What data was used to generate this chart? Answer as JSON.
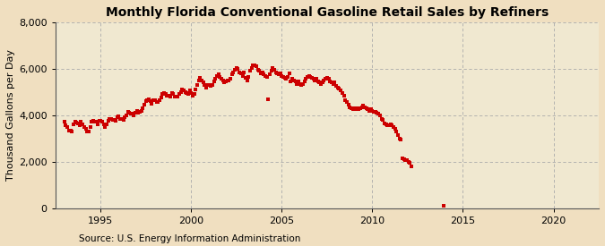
{
  "title": "Monthly Florida Conventional Gasoline Retail Sales by Refiners",
  "ylabel": "Thousand Gallons per Day",
  "source": "Source: U.S. Energy Information Administration",
  "background_color": "#f0dfc0",
  "plot_bg_color": "#f0e8d0",
  "marker_color": "#cc0000",
  "marker": "s",
  "marker_size": 2.5,
  "xlim": [
    1992.5,
    2022.5
  ],
  "ylim": [
    0,
    8000
  ],
  "yticks": [
    0,
    2000,
    4000,
    6000,
    8000
  ],
  "xticks": [
    1995,
    2000,
    2005,
    2010,
    2015,
    2020
  ],
  "grid_color": "#aaaaaa",
  "title_fontsize": 10,
  "ylabel_fontsize": 8,
  "source_fontsize": 7.5,
  "data": [
    [
      1993.0,
      3700
    ],
    [
      1993.08,
      3580
    ],
    [
      1993.17,
      3480
    ],
    [
      1993.25,
      3350
    ],
    [
      1993.33,
      3320
    ],
    [
      1993.42,
      3300
    ],
    [
      1993.5,
      3600
    ],
    [
      1993.58,
      3700
    ],
    [
      1993.67,
      3680
    ],
    [
      1993.75,
      3650
    ],
    [
      1993.83,
      3550
    ],
    [
      1993.92,
      3700
    ],
    [
      1994.0,
      3600
    ],
    [
      1994.08,
      3500
    ],
    [
      1994.17,
      3400
    ],
    [
      1994.25,
      3300
    ],
    [
      1994.33,
      3300
    ],
    [
      1994.42,
      3500
    ],
    [
      1994.5,
      3700
    ],
    [
      1994.58,
      3750
    ],
    [
      1994.67,
      3700
    ],
    [
      1994.75,
      3700
    ],
    [
      1994.83,
      3600
    ],
    [
      1994.92,
      3750
    ],
    [
      1995.0,
      3750
    ],
    [
      1995.08,
      3700
    ],
    [
      1995.17,
      3600
    ],
    [
      1995.25,
      3500
    ],
    [
      1995.33,
      3600
    ],
    [
      1995.42,
      3750
    ],
    [
      1995.5,
      3850
    ],
    [
      1995.58,
      3850
    ],
    [
      1995.67,
      3800
    ],
    [
      1995.75,
      3800
    ],
    [
      1995.83,
      3750
    ],
    [
      1995.92,
      3900
    ],
    [
      1996.0,
      3950
    ],
    [
      1996.08,
      3850
    ],
    [
      1996.17,
      3850
    ],
    [
      1996.25,
      3800
    ],
    [
      1996.33,
      3900
    ],
    [
      1996.42,
      4000
    ],
    [
      1996.5,
      4150
    ],
    [
      1996.58,
      4100
    ],
    [
      1996.67,
      4050
    ],
    [
      1996.75,
      4050
    ],
    [
      1996.83,
      4000
    ],
    [
      1996.92,
      4100
    ],
    [
      1997.0,
      4200
    ],
    [
      1997.08,
      4100
    ],
    [
      1997.17,
      4150
    ],
    [
      1997.25,
      4200
    ],
    [
      1997.33,
      4300
    ],
    [
      1997.42,
      4450
    ],
    [
      1997.5,
      4600
    ],
    [
      1997.58,
      4650
    ],
    [
      1997.67,
      4700
    ],
    [
      1997.75,
      4600
    ],
    [
      1997.83,
      4500
    ],
    [
      1997.92,
      4650
    ],
    [
      1998.0,
      4650
    ],
    [
      1998.08,
      4550
    ],
    [
      1998.17,
      4550
    ],
    [
      1998.25,
      4650
    ],
    [
      1998.33,
      4750
    ],
    [
      1998.42,
      4900
    ],
    [
      1998.5,
      4950
    ],
    [
      1998.58,
      4900
    ],
    [
      1998.67,
      4850
    ],
    [
      1998.75,
      4850
    ],
    [
      1998.83,
      4800
    ],
    [
      1998.92,
      4950
    ],
    [
      1999.0,
      4900
    ],
    [
      1999.08,
      4800
    ],
    [
      1999.17,
      4780
    ],
    [
      1999.25,
      4800
    ],
    [
      1999.33,
      4900
    ],
    [
      1999.42,
      5000
    ],
    [
      1999.5,
      5100
    ],
    [
      1999.58,
      5050
    ],
    [
      1999.67,
      5000
    ],
    [
      1999.75,
      4950
    ],
    [
      1999.83,
      4900
    ],
    [
      1999.92,
      5050
    ],
    [
      2000.0,
      4950
    ],
    [
      2000.08,
      4850
    ],
    [
      2000.17,
      4900
    ],
    [
      2000.25,
      5100
    ],
    [
      2000.33,
      5300
    ],
    [
      2000.42,
      5500
    ],
    [
      2000.5,
      5600
    ],
    [
      2000.58,
      5500
    ],
    [
      2000.67,
      5400
    ],
    [
      2000.75,
      5300
    ],
    [
      2000.83,
      5200
    ],
    [
      2000.92,
      5300
    ],
    [
      2001.0,
      5300
    ],
    [
      2001.08,
      5250
    ],
    [
      2001.17,
      5300
    ],
    [
      2001.25,
      5450
    ],
    [
      2001.33,
      5550
    ],
    [
      2001.42,
      5700
    ],
    [
      2001.5,
      5750
    ],
    [
      2001.58,
      5650
    ],
    [
      2001.67,
      5550
    ],
    [
      2001.75,
      5500
    ],
    [
      2001.83,
      5400
    ],
    [
      2001.92,
      5450
    ],
    [
      2002.0,
      5500
    ],
    [
      2002.08,
      5500
    ],
    [
      2002.17,
      5550
    ],
    [
      2002.25,
      5750
    ],
    [
      2002.33,
      5850
    ],
    [
      2002.42,
      5950
    ],
    [
      2002.5,
      6050
    ],
    [
      2002.58,
      6000
    ],
    [
      2002.67,
      5850
    ],
    [
      2002.75,
      5800
    ],
    [
      2002.83,
      5700
    ],
    [
      2002.92,
      5850
    ],
    [
      2003.0,
      5600
    ],
    [
      2003.08,
      5500
    ],
    [
      2003.17,
      5650
    ],
    [
      2003.25,
      5900
    ],
    [
      2003.33,
      6050
    ],
    [
      2003.42,
      6150
    ],
    [
      2003.5,
      6150
    ],
    [
      2003.58,
      6100
    ],
    [
      2003.67,
      5950
    ],
    [
      2003.75,
      5900
    ],
    [
      2003.83,
      5800
    ],
    [
      2003.92,
      5850
    ],
    [
      2004.0,
      5750
    ],
    [
      2004.08,
      5700
    ],
    [
      2004.17,
      5650
    ],
    [
      2004.25,
      4700
    ],
    [
      2004.33,
      5750
    ],
    [
      2004.42,
      5900
    ],
    [
      2004.5,
      6050
    ],
    [
      2004.58,
      5950
    ],
    [
      2004.67,
      5850
    ],
    [
      2004.75,
      5800
    ],
    [
      2004.83,
      5750
    ],
    [
      2004.92,
      5800
    ],
    [
      2005.0,
      5700
    ],
    [
      2005.08,
      5650
    ],
    [
      2005.17,
      5600
    ],
    [
      2005.25,
      5550
    ],
    [
      2005.33,
      5650
    ],
    [
      2005.42,
      5800
    ],
    [
      2005.5,
      5450
    ],
    [
      2005.58,
      5550
    ],
    [
      2005.67,
      5500
    ],
    [
      2005.75,
      5450
    ],
    [
      2005.83,
      5350
    ],
    [
      2005.92,
      5450
    ],
    [
      2006.0,
      5350
    ],
    [
      2006.08,
      5300
    ],
    [
      2006.17,
      5350
    ],
    [
      2006.25,
      5450
    ],
    [
      2006.33,
      5550
    ],
    [
      2006.42,
      5650
    ],
    [
      2006.5,
      5700
    ],
    [
      2006.58,
      5650
    ],
    [
      2006.67,
      5600
    ],
    [
      2006.75,
      5550
    ],
    [
      2006.83,
      5500
    ],
    [
      2006.92,
      5550
    ],
    [
      2007.0,
      5450
    ],
    [
      2007.08,
      5400
    ],
    [
      2007.17,
      5350
    ],
    [
      2007.25,
      5400
    ],
    [
      2007.33,
      5500
    ],
    [
      2007.42,
      5550
    ],
    [
      2007.5,
      5600
    ],
    [
      2007.58,
      5550
    ],
    [
      2007.67,
      5450
    ],
    [
      2007.75,
      5400
    ],
    [
      2007.83,
      5350
    ],
    [
      2007.92,
      5400
    ],
    [
      2008.0,
      5250
    ],
    [
      2008.08,
      5200
    ],
    [
      2008.17,
      5150
    ],
    [
      2008.25,
      5050
    ],
    [
      2008.33,
      4950
    ],
    [
      2008.42,
      4850
    ],
    [
      2008.5,
      4650
    ],
    [
      2008.58,
      4550
    ],
    [
      2008.67,
      4450
    ],
    [
      2008.75,
      4350
    ],
    [
      2008.83,
      4300
    ],
    [
      2008.92,
      4250
    ],
    [
      2009.0,
      4300
    ],
    [
      2009.08,
      4250
    ],
    [
      2009.17,
      4300
    ],
    [
      2009.25,
      4250
    ],
    [
      2009.33,
      4300
    ],
    [
      2009.42,
      4350
    ],
    [
      2009.5,
      4400
    ],
    [
      2009.58,
      4350
    ],
    [
      2009.67,
      4300
    ],
    [
      2009.75,
      4250
    ],
    [
      2009.83,
      4200
    ],
    [
      2009.92,
      4250
    ],
    [
      2010.0,
      4200
    ],
    [
      2010.08,
      4150
    ],
    [
      2010.17,
      4150
    ],
    [
      2010.25,
      4100
    ],
    [
      2010.33,
      4050
    ],
    [
      2010.42,
      4000
    ],
    [
      2010.5,
      3850
    ],
    [
      2010.58,
      3800
    ],
    [
      2010.67,
      3650
    ],
    [
      2010.75,
      3600
    ],
    [
      2010.83,
      3550
    ],
    [
      2010.92,
      3550
    ],
    [
      2011.0,
      3600
    ],
    [
      2011.08,
      3550
    ],
    [
      2011.17,
      3500
    ],
    [
      2011.25,
      3400
    ],
    [
      2011.33,
      3300
    ],
    [
      2011.42,
      3150
    ],
    [
      2011.5,
      3000
    ],
    [
      2011.58,
      2950
    ],
    [
      2011.67,
      2150
    ],
    [
      2011.75,
      2100
    ],
    [
      2011.83,
      2050
    ],
    [
      2011.92,
      2050
    ],
    [
      2012.0,
      2000
    ],
    [
      2012.08,
      1950
    ],
    [
      2012.17,
      1780
    ],
    [
      2013.92,
      80
    ]
  ]
}
